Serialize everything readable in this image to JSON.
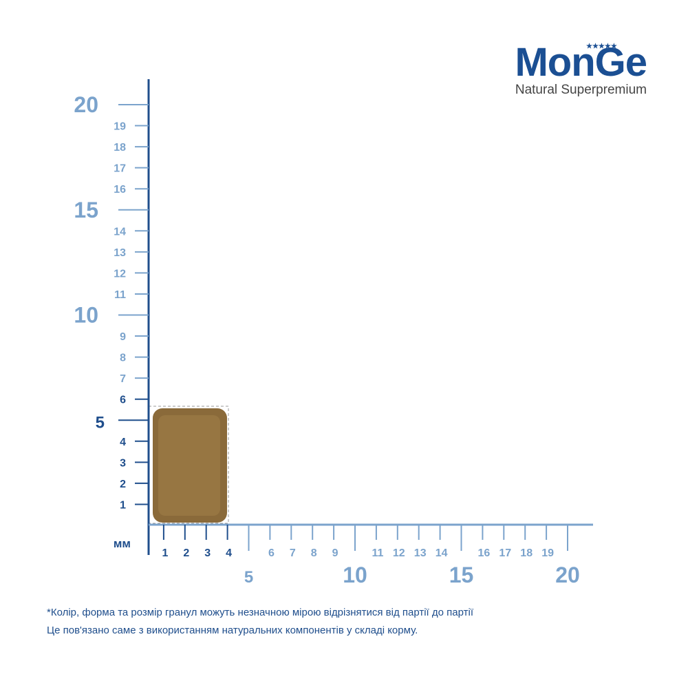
{
  "logo": {
    "brand": "MonGe",
    "tagline": "Natural Superpremium"
  },
  "ruler": {
    "unit": "мм",
    "vertical": {
      "major": [
        5,
        10,
        15,
        20
      ],
      "minor": [
        1,
        2,
        3,
        4,
        6,
        7,
        8,
        9,
        11,
        12,
        13,
        14,
        16,
        17,
        18,
        19
      ]
    },
    "horizontal": {
      "major": [
        5,
        10,
        15,
        20
      ],
      "minor": [
        1,
        2,
        3,
        4,
        6,
        7,
        8,
        9,
        11,
        12,
        13,
        14,
        16,
        17,
        18,
        19
      ]
    }
  },
  "footnote": [
    "*Колір, форма та розмір гранул можуть незначною мірою відрізнятися від партії до партії",
    "Це пов'язано саме з використанням натуральних компонентів у складі корму."
  ]
}
